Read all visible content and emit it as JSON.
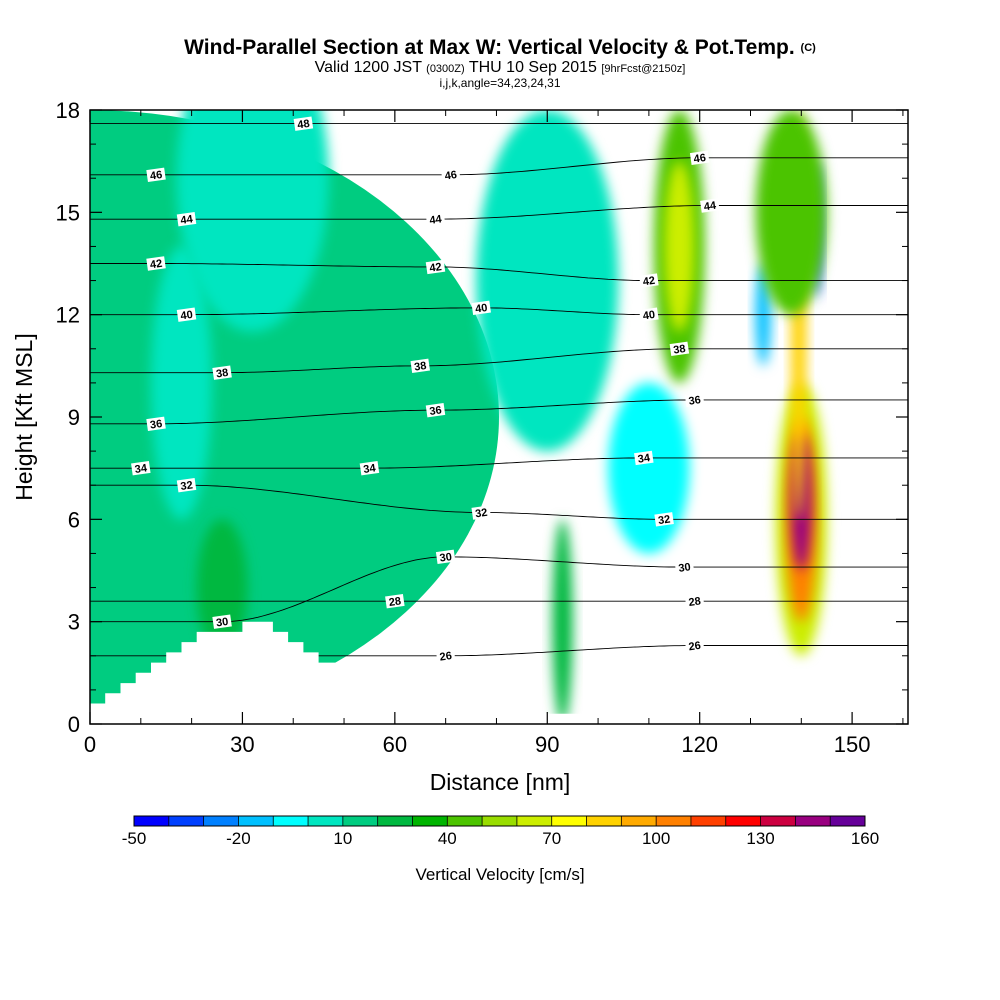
{
  "header": {
    "title": "Wind-Parallel Section at Max W: Vertical Velocity & Pot.Temp.",
    "title_mark": "(C)",
    "valid_prefix": "Valid 1200 JST",
    "valid_utc": "(0300Z)",
    "valid_date": "THU 10 Sep 2015",
    "forecast": "[9hrFcst@2150z]",
    "indices": "i,j,k,angle=34,23,24,31"
  },
  "colors": {
    "palette": [
      "#0000ff",
      "#0040ff",
      "#0080ff",
      "#00c0ff",
      "#00ffff",
      "#00e6c0",
      "#00cc80",
      "#00b840",
      "#00b400",
      "#4cc400",
      "#99dd00",
      "#ccee00",
      "#ffff00",
      "#ffd200",
      "#ffaa00",
      "#ff8000",
      "#ff4000",
      "#ff0000",
      "#cc0040",
      "#990080",
      "#660099"
    ],
    "terrain": "#ffffff",
    "contour": "#000000"
  },
  "chart_data": {
    "type": "heatmap",
    "title": "Wind-Parallel Section at Max W: Vertical Velocity & Pot.Temp.",
    "xlabel": "Distance [nm]",
    "ylabel": "Height [Kft MSL]",
    "xlim": [
      0,
      161
    ],
    "ylim": [
      0,
      18
    ],
    "x_ticks": [
      0,
      30,
      60,
      90,
      120,
      150
    ],
    "y_ticks": [
      0,
      3,
      6,
      9,
      12,
      15,
      18
    ],
    "colorbar": {
      "label": "Vertical Velocity [cm/s]",
      "tick_labels": [
        "-50",
        "-20",
        "10",
        "40",
        "70",
        "100",
        "130",
        "160"
      ],
      "tick_values": [
        -50,
        -20,
        10,
        40,
        70,
        100,
        130,
        160
      ],
      "min": -50,
      "max": 160,
      "step": 10
    },
    "terrain_profile": {
      "x": [
        0,
        3,
        3,
        6,
        6,
        9,
        9,
        12,
        12,
        15,
        15,
        18,
        18,
        21,
        21,
        24,
        24,
        27,
        27,
        30,
        30,
        33,
        33,
        36,
        36,
        39,
        39,
        42,
        42,
        45,
        45,
        48,
        48,
        51,
        51,
        54,
        54,
        57,
        57,
        60,
        60,
        63,
        63,
        66,
        66,
        69,
        69,
        72,
        72,
        75,
        75,
        78,
        78,
        81,
        81,
        84,
        84,
        87,
        87,
        90,
        90,
        93,
        93,
        96,
        96,
        99,
        99,
        102,
        102,
        105,
        105,
        108,
        108,
        111,
        111,
        114,
        114,
        117,
        117,
        120,
        120,
        123,
        123,
        126,
        126,
        129,
        129,
        132,
        132,
        135,
        135,
        138,
        138,
        141,
        141,
        144,
        144,
        147,
        147,
        150,
        150,
        153,
        153,
        156,
        156,
        161
      ],
      "height": [
        0.6,
        0.6,
        0.9,
        0.9,
        1.2,
        1.2,
        1.5,
        1.5,
        1.8,
        1.8,
        2.1,
        2.1,
        2.4,
        2.4,
        2.7,
        2.7,
        2.7,
        2.7,
        2.7,
        2.7,
        3.0,
        3.0,
        3.0,
        3.0,
        2.7,
        2.7,
        2.4,
        2.4,
        2.1,
        2.1,
        1.8,
        1.8,
        1.8,
        1.8,
        1.5,
        1.5,
        1.2,
        1.2,
        0.9,
        0.9,
        0.6,
        0.6,
        0.6,
        0.6,
        0.3,
        0.3,
        0.3,
        0.3,
        0.3,
        0.3,
        0.3,
        0.3,
        0.3,
        0.3,
        0.3,
        0.3,
        0.3,
        0.3,
        0.3,
        0.3,
        0.3,
        0.3,
        0.3,
        0.3,
        0.3,
        0.3,
        0.3,
        0.3,
        0.3,
        0.3,
        0.6,
        0.6,
        0.6,
        0.6,
        0.6,
        0.6,
        0.6,
        0.6,
        0.6,
        0.6,
        0.6,
        0.6,
        0.6,
        0.6,
        0.6,
        0.6,
        0.9,
        0.9,
        0.9,
        0.9,
        1.2,
        1.2,
        1.5,
        1.5,
        1.5,
        1.5,
        1.5,
        1.5,
        1.5,
        1.5,
        1.5,
        1.5,
        1.5,
        1.5,
        1.3,
        1.3
      ]
    },
    "vertical_velocity_features": [
      {
        "x": 0,
        "width": 161,
        "y": 9,
        "height": 18,
        "w": 10
      },
      {
        "x": 32,
        "width": 30,
        "y": 16,
        "height": 9,
        "w": 0
      },
      {
        "x": 18,
        "width": 12,
        "y": 10,
        "height": 8,
        "w": 0
      },
      {
        "x": 90,
        "width": 28,
        "y": 13,
        "height": 10,
        "w": 0
      },
      {
        "x": 110,
        "width": 16,
        "y": 7.5,
        "height": 5,
        "w": -10
      },
      {
        "x": 26,
        "width": 10,
        "y": 4,
        "height": 4,
        "w": 20
      },
      {
        "x": 93,
        "width": 4,
        "y": 3,
        "height": 6,
        "w": 20
      },
      {
        "x": 116,
        "width": 10,
        "y": 14,
        "height": 8,
        "w": 40
      },
      {
        "x": 116,
        "width": 6,
        "y": 14,
        "height": 5,
        "w": 60
      },
      {
        "x": 140,
        "width": 10,
        "y": 6,
        "height": 8,
        "w": 60
      },
      {
        "x": 140,
        "width": 6,
        "y": 6,
        "height": 6,
        "w": 100
      },
      {
        "x": 140,
        "width": 4,
        "y": 6.5,
        "height": 4,
        "w": 140
      },
      {
        "x": 139.5,
        "width": 3,
        "y": 12,
        "height": 12,
        "w": 80
      },
      {
        "x": 132.5,
        "width": 3,
        "y": 12,
        "height": 3,
        "w": -20
      },
      {
        "x": 143,
        "width": 2,
        "y": 14.5,
        "height": 4,
        "w": -40
      },
      {
        "x": 138,
        "width": 14,
        "y": 15,
        "height": 6,
        "w": 40
      }
    ],
    "potential_temperature_contours": [
      {
        "label": "26",
        "label_positions": [
          [
            70,
            2.0
          ],
          [
            119,
            2.3
          ]
        ]
      },
      {
        "label": "28",
        "label_positions": [
          [
            60,
            3.6
          ],
          [
            119,
            3.6
          ]
        ]
      },
      {
        "label": "30",
        "label_positions": [
          [
            26,
            3.0
          ],
          [
            70,
            4.9
          ],
          [
            117,
            4.6
          ]
        ]
      },
      {
        "label": "32",
        "label_positions": [
          [
            19,
            7.0
          ],
          [
            77,
            6.2
          ],
          [
            113,
            6.0
          ]
        ]
      },
      {
        "label": "34",
        "label_positions": [
          [
            10,
            7.5
          ],
          [
            55,
            7.5
          ],
          [
            109,
            7.8
          ]
        ]
      },
      {
        "label": "36",
        "label_positions": [
          [
            13,
            8.8
          ],
          [
            68,
            9.2
          ],
          [
            119,
            9.5
          ]
        ]
      },
      {
        "label": "38",
        "label_positions": [
          [
            26,
            10.3
          ],
          [
            65,
            10.5
          ],
          [
            116,
            11.0
          ]
        ]
      },
      {
        "label": "40",
        "label_positions": [
          [
            19,
            12.0
          ],
          [
            77,
            12.2
          ],
          [
            110,
            12.0
          ]
        ]
      },
      {
        "label": "42",
        "label_positions": [
          [
            13,
            13.5
          ],
          [
            68,
            13.4
          ],
          [
            110,
            13.0
          ]
        ]
      },
      {
        "label": "44",
        "label_positions": [
          [
            19,
            14.8
          ],
          [
            68,
            14.8
          ],
          [
            122,
            15.2
          ]
        ]
      },
      {
        "label": "46",
        "label_positions": [
          [
            13,
            16.1
          ],
          [
            71,
            16.1
          ],
          [
            120,
            16.6
          ]
        ]
      },
      {
        "label": "48",
        "label_positions": [
          [
            42,
            17.6
          ]
        ]
      }
    ]
  }
}
